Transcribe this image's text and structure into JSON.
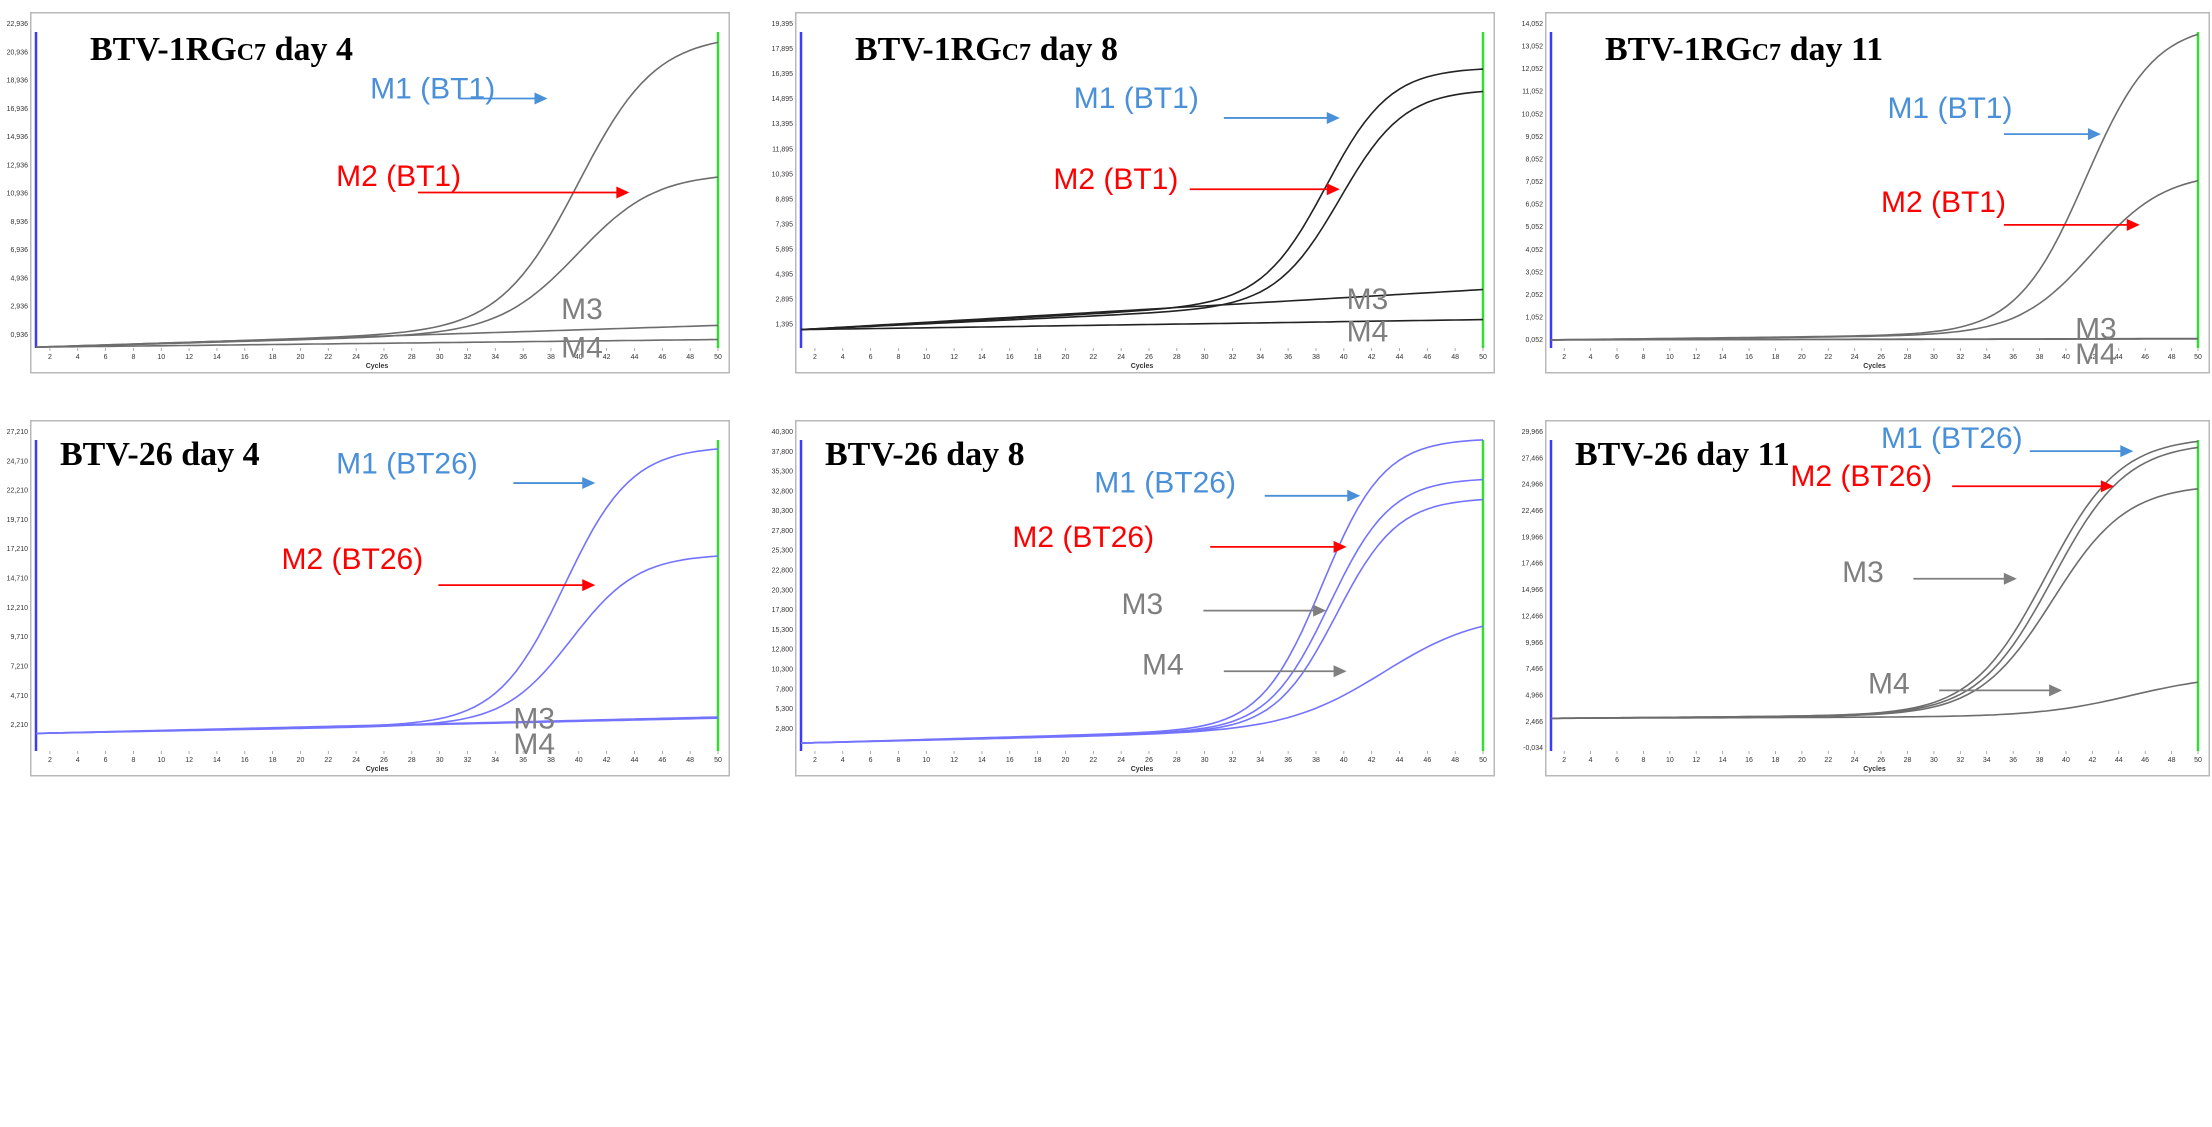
{
  "figure": {
    "colors": {
      "m1_label": "#4a90d9",
      "m2_label": "#ff0000",
      "m3m4_label": "#7f7f7f",
      "gray_trace": "#6d6d6d",
      "blue_trace": "#7373ff",
      "dark_trace": "#222222",
      "left_line": "#3b3bff",
      "right_line": "#33dd33"
    }
  },
  "chart_data": [
    {
      "type": "line",
      "title": "BTV-1RGC7 day 4",
      "title_main": "BTV-1RG",
      "title_sub": "C7",
      "title_tail": " day 4",
      "xlabel": "Cycles",
      "x_ticks": [
        "2",
        "4",
        "6",
        "8",
        "10",
        "12",
        "14",
        "16",
        "18",
        "20",
        "22",
        "24",
        "26",
        "28",
        "30",
        "32",
        "34",
        "36",
        "38",
        "40",
        "42",
        "44",
        "46",
        "48",
        "50"
      ],
      "y_ticks": [
        "0,936",
        "2,936",
        "4,936",
        "6,936",
        "8,936",
        "10,936",
        "12,936",
        "14,936",
        "16,936",
        "18,936",
        "20,936",
        "22,936"
      ],
      "xlim": [
        1,
        50
      ],
      "ylim": [
        0,
        22936
      ],
      "trace_color": "gray_trace",
      "series": [
        {
          "name": "M1 (BT1)",
          "label_color": "m1_label",
          "arrow_color": "m1_label",
          "plateau": 22200,
          "midpoint": 40,
          "slope": 2.8,
          "baseline_start": 60,
          "baseline_end": 1600
        },
        {
          "name": "M2 (BT1)",
          "label_color": "m2_label",
          "arrow_color": "m2_label",
          "plateau": 12400,
          "midpoint": 40,
          "slope": 2.8,
          "baseline_start": 60,
          "baseline_end": 1400
        },
        {
          "name": "M3",
          "label_color": "m3m4_label",
          "plateau": 0,
          "midpoint": 40,
          "slope": 3,
          "baseline_start": 60,
          "baseline_end": 1600
        },
        {
          "name": "M4",
          "label_color": "m3m4_label",
          "plateau": 0,
          "midpoint": 40,
          "slope": 3,
          "baseline_start": 60,
          "baseline_end": 600
        }
      ]
    },
    {
      "type": "line",
      "title": "BTV-1RGC7 day 8",
      "title_main": "BTV-1RG",
      "title_sub": "C7",
      "title_tail": " day 8",
      "xlabel": "Cycles",
      "x_ticks": [
        "2",
        "4",
        "6",
        "8",
        "10",
        "12",
        "14",
        "16",
        "18",
        "20",
        "22",
        "24",
        "26",
        "28",
        "30",
        "32",
        "34",
        "36",
        "38",
        "40",
        "42",
        "44",
        "46",
        "48",
        "50"
      ],
      "y_ticks": [
        "1,395",
        "2,895",
        "4,395",
        "5,895",
        "7,395",
        "8,895",
        "10,395",
        "11,895",
        "13,395",
        "14,895",
        "16,395",
        "17,895",
        "19,395"
      ],
      "xlim": [
        1,
        50
      ],
      "ylim": [
        0,
        19395
      ],
      "trace_color": "dark_trace",
      "series": [
        {
          "name": "M1 (BT1)",
          "label_color": "m1_label",
          "arrow_color": "m1_label",
          "plateau": 16800,
          "midpoint": 38.8,
          "slope": 2.3,
          "baseline_start": 1100,
          "baseline_end": 3300
        },
        {
          "name": "M2 (BT1)",
          "label_color": "m2_label",
          "arrow_color": "m2_label",
          "plateau": 15500,
          "midpoint": 39.8,
          "slope": 2.3,
          "baseline_start": 1100,
          "baseline_end": 3000
        },
        {
          "name": "M3",
          "label_color": "m3m4_label",
          "plateau": 0,
          "midpoint": 40,
          "slope": 3,
          "baseline_start": 1100,
          "baseline_end": 3500
        },
        {
          "name": "M4",
          "label_color": "m3m4_label",
          "plateau": 0,
          "midpoint": 40,
          "slope": 3,
          "baseline_start": 1100,
          "baseline_end": 1700
        }
      ]
    },
    {
      "type": "line",
      "title": "BTV-1RGC7 day 11",
      "title_main": "BTV-1RG",
      "title_sub": "C7",
      "title_tail": " day 11",
      "xlabel": "Cycles",
      "x_ticks": [
        "2",
        "4",
        "6",
        "8",
        "10",
        "12",
        "14",
        "16",
        "18",
        "20",
        "22",
        "24",
        "26",
        "28",
        "30",
        "32",
        "34",
        "36",
        "38",
        "40",
        "42",
        "44",
        "46",
        "48",
        "50"
      ],
      "y_ticks": [
        "0,052",
        "1,052",
        "2,052",
        "3,052",
        "4,052",
        "5,052",
        "6,052",
        "7,052",
        "8,052",
        "9,052",
        "10,052",
        "11,052",
        "12,052",
        "13,052",
        "14,052"
      ],
      "xlim": [
        1,
        50
      ],
      "ylim": [
        -300,
        14052
      ],
      "trace_color": "gray_trace",
      "series": [
        {
          "name": "M1 (BT1)",
          "label_color": "m1_label",
          "arrow_color": "m1_label",
          "plateau": 14100,
          "midpoint": 41.5,
          "slope": 2.6,
          "baseline_start": 60,
          "baseline_end": 400
        },
        {
          "name": "M2 (BT1)",
          "label_color": "m2_label",
          "arrow_color": "m2_label",
          "plateau": 7500,
          "midpoint": 42,
          "slope": 2.8,
          "baseline_start": 60,
          "baseline_end": 350
        },
        {
          "name": "M3",
          "label_color": "m3m4_label",
          "plateau": 0,
          "midpoint": 40,
          "slope": 3,
          "baseline_start": 60,
          "baseline_end": 120
        },
        {
          "name": "M4",
          "label_color": "m3m4_label",
          "plateau": 0,
          "midpoint": 40,
          "slope": 3,
          "baseline_start": 60,
          "baseline_end": 100
        }
      ]
    },
    {
      "type": "line",
      "title": "BTV-26 day 4",
      "title_main": "BTV-26 day 4",
      "title_sub": "",
      "title_tail": "",
      "xlabel": "Cycles",
      "x_ticks": [
        "2",
        "4",
        "6",
        "8",
        "10",
        "12",
        "14",
        "16",
        "18",
        "20",
        "22",
        "24",
        "26",
        "28",
        "30",
        "32",
        "34",
        "36",
        "38",
        "40",
        "42",
        "44",
        "46",
        "48",
        "50"
      ],
      "y_ticks": [
        "2,210",
        "4,710",
        "7,210",
        "9,710",
        "12,210",
        "14,710",
        "17,210",
        "19,710",
        "22,210",
        "24,710",
        "27,210"
      ],
      "xlim": [
        1,
        50
      ],
      "ylim": [
        0,
        27210
      ],
      "trace_color": "blue_trace",
      "series": [
        {
          "name": "M1 (BT26)",
          "label_color": "m1_label",
          "arrow_color": "m1_label",
          "plateau": 26000,
          "midpoint": 39,
          "slope": 2.4,
          "baseline_start": 1500,
          "baseline_end": 2700
        },
        {
          "name": "M2 (BT26)",
          "label_color": "m2_label",
          "arrow_color": "m2_label",
          "plateau": 16800,
          "midpoint": 39.5,
          "slope": 2.4,
          "baseline_start": 1500,
          "baseline_end": 2600
        },
        {
          "name": "M3",
          "label_color": "m3m4_label",
          "plateau": 0,
          "midpoint": 40,
          "slope": 3,
          "baseline_start": 1500,
          "baseline_end": 2900
        },
        {
          "name": "M4",
          "label_color": "m3m4_label",
          "plateau": 0,
          "midpoint": 40,
          "slope": 3,
          "baseline_start": 1500,
          "baseline_end": 2800
        }
      ]
    },
    {
      "type": "line",
      "title": "BTV-26 day 8",
      "title_main": "BTV-26 day 8",
      "title_sub": "",
      "title_tail": "",
      "xlabel": "Cycles",
      "x_ticks": [
        "2",
        "4",
        "6",
        "8",
        "10",
        "12",
        "14",
        "16",
        "18",
        "20",
        "22",
        "24",
        "26",
        "28",
        "30",
        "32",
        "34",
        "36",
        "38",
        "40",
        "42",
        "44",
        "46",
        "48",
        "50"
      ],
      "y_ticks": [
        "2,800",
        "5,300",
        "7,800",
        "10,300",
        "12,800",
        "15,300",
        "17,800",
        "20,300",
        "22,800",
        "25,300",
        "27,800",
        "30,300",
        "32,800",
        "35,300",
        "37,800",
        "40,300"
      ],
      "xlim": [
        1,
        50
      ],
      "ylim": [
        0,
        40300
      ],
      "trace_color": "blue_trace",
      "series": [
        {
          "name": "M1 (BT26)",
          "label_color": "m1_label",
          "arrow_color": "m1_label",
          "plateau": 39500,
          "midpoint": 38.5,
          "slope": 2.2,
          "baseline_start": 1000,
          "baseline_end": 3500
        },
        {
          "name": "M2 (BT26)",
          "label_color": "m2_label",
          "arrow_color": "m2_label",
          "plateau": 34500,
          "midpoint": 39,
          "slope": 2.2,
          "baseline_start": 1000,
          "baseline_end": 3300
        },
        {
          "name": "M3",
          "label_color": "m3m4_label",
          "arrow_color": "m3m4_label",
          "plateau": 32000,
          "midpoint": 39.5,
          "slope": 2.2,
          "baseline_start": 1000,
          "baseline_end": 3200
        },
        {
          "name": "M4",
          "label_color": "m3m4_label",
          "arrow_color": "m3m4_label",
          "plateau": 17500,
          "midpoint": 43,
          "slope": 3.5,
          "baseline_start": 1000,
          "baseline_end": 3000
        }
      ]
    },
    {
      "type": "line",
      "title": "BTV-26 day 11",
      "title_main": "BTV-26 day 11",
      "title_sub": "",
      "title_tail": "",
      "xlabel": "Cycles",
      "x_ticks": [
        "2",
        "4",
        "6",
        "8",
        "10",
        "12",
        "14",
        "16",
        "18",
        "20",
        "22",
        "24",
        "26",
        "28",
        "30",
        "32",
        "34",
        "36",
        "38",
        "40",
        "42",
        "44",
        "46",
        "48",
        "50"
      ],
      "y_ticks": [
        "-0,034",
        "2,466",
        "4,966",
        "7,466",
        "9,966",
        "12,466",
        "14,966",
        "17,466",
        "19,966",
        "22,466",
        "24,966",
        "27,466",
        "29,966"
      ],
      "xlim": [
        1,
        50
      ],
      "ylim": [
        -300,
        29966
      ],
      "trace_color": "gray_trace",
      "series": [
        {
          "name": "M1 (BT26)",
          "label_color": "m1_label",
          "arrow_color": "m1_label",
          "plateau": 29500,
          "midpoint": 38.5,
          "slope": 2.8,
          "baseline_start": 2800,
          "baseline_end": 3300
        },
        {
          "name": "M2 (BT26)",
          "label_color": "m2_label",
          "arrow_color": "m2_label",
          "plateau": 29000,
          "midpoint": 39,
          "slope": 2.8,
          "baseline_start": 2800,
          "baseline_end": 3300
        },
        {
          "name": "M3",
          "label_color": "m3m4_label",
          "arrow_color": "m3m4_label",
          "plateau": 25000,
          "midpoint": 39,
          "slope": 2.8,
          "baseline_start": 2800,
          "baseline_end": 3200
        },
        {
          "name": "M4",
          "label_color": "m3m4_label",
          "arrow_color": "m3m4_label",
          "plateau": 7000,
          "midpoint": 45,
          "slope": 3.5,
          "baseline_start": 2800,
          "baseline_end": 3000
        }
      ]
    }
  ]
}
